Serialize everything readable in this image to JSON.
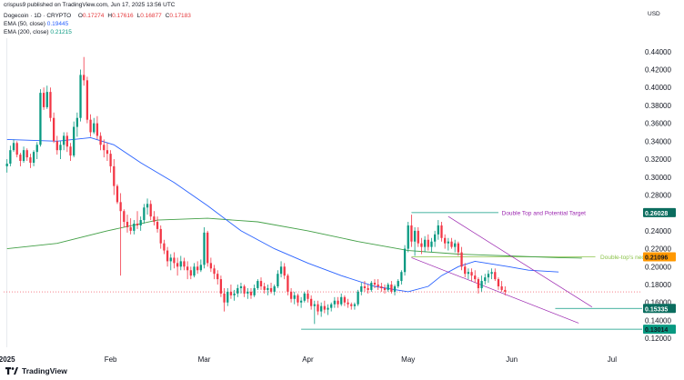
{
  "header": {
    "published_line": "crispus9 published on TradingView.com, Jun 17, 2025 13:56 UTC",
    "symbol": "Dogecoin · 1D · CRYPTO",
    "ohlc": [
      {
        "k": "O",
        "v": "0.17274"
      },
      {
        "k": "H",
        "v": "0.17616"
      },
      {
        "k": "L",
        "v": "0.16877"
      },
      {
        "k": "C",
        "v": "0.17183"
      }
    ],
    "ema50_label": "EMA (50, close)",
    "ema50_value": "0.19445",
    "ema200_label": "EMA (200, close)",
    "ema200_value": "0.21215"
  },
  "currency": "USD",
  "footer": {
    "brand": "TradingView"
  },
  "colors": {
    "up": "#089981",
    "down": "#f23645",
    "ema50": "#2962ff",
    "ema200": "#43a047",
    "hline": "#089981",
    "current": "#f23645",
    "channel": "#9c27b0",
    "neckline_badge": "#ff9800",
    "target_badge": "#0b6d5f",
    "year_line": "#131722"
  },
  "chart_data": {
    "type": "candlestick",
    "title": "",
    "xlabel": "",
    "ylabel": "",
    "ylim": [
      0.11,
      0.455
    ],
    "y_ticks": [
      "0.44000",
      "0.42000",
      "0.40000",
      "0.38000",
      "0.36000",
      "0.34000",
      "0.32000",
      "0.30000",
      "0.28000",
      "0.26000",
      "0.24000",
      "0.22000",
      "0.20000",
      "0.18000",
      "0.16000",
      "0.14000",
      "0.12000"
    ],
    "x_ticks": [
      {
        "label": "2025",
        "day": 0,
        "bold": true
      },
      {
        "label": "Feb",
        "day": 31
      },
      {
        "label": "Mar",
        "day": 59
      },
      {
        "label": "Apr",
        "day": 90
      },
      {
        "label": "May",
        "day": 120
      },
      {
        "label": "Jun",
        "day": 151
      },
      {
        "label": "Jul",
        "day": 181
      }
    ],
    "x_range_days": [
      -1,
      190
    ],
    "candles": [
      [
        0.312,
        0.32,
        0.305,
        0.315
      ],
      [
        0.315,
        0.335,
        0.312,
        0.33
      ],
      [
        0.33,
        0.342,
        0.328,
        0.338
      ],
      [
        0.338,
        0.34,
        0.322,
        0.325
      ],
      [
        0.325,
        0.327,
        0.312,
        0.318
      ],
      [
        0.318,
        0.334,
        0.316,
        0.33
      ],
      [
        0.33,
        0.332,
        0.318,
        0.322
      ],
      [
        0.322,
        0.326,
        0.31,
        0.316
      ],
      [
        0.316,
        0.33,
        0.312,
        0.328
      ],
      [
        0.328,
        0.339,
        0.32,
        0.336
      ],
      [
        0.336,
        0.398,
        0.334,
        0.394
      ],
      [
        0.394,
        0.4,
        0.375,
        0.378
      ],
      [
        0.378,
        0.402,
        0.376,
        0.395
      ],
      [
        0.395,
        0.4,
        0.362,
        0.366
      ],
      [
        0.366,
        0.372,
        0.338,
        0.34
      ],
      [
        0.34,
        0.346,
        0.325,
        0.33
      ],
      [
        0.33,
        0.34,
        0.32,
        0.336
      ],
      [
        0.336,
        0.35,
        0.33,
        0.346
      ],
      [
        0.346,
        0.35,
        0.328,
        0.334
      ],
      [
        0.334,
        0.338,
        0.318,
        0.324
      ],
      [
        0.324,
        0.362,
        0.322,
        0.356
      ],
      [
        0.356,
        0.372,
        0.345,
        0.366
      ],
      [
        0.366,
        0.42,
        0.362,
        0.414
      ],
      [
        0.414,
        0.434,
        0.402,
        0.408
      ],
      [
        0.408,
        0.412,
        0.36,
        0.364
      ],
      [
        0.364,
        0.37,
        0.345,
        0.35
      ],
      [
        0.35,
        0.366,
        0.348,
        0.36
      ],
      [
        0.36,
        0.368,
        0.342,
        0.346
      ],
      [
        0.346,
        0.35,
        0.33,
        0.336
      ],
      [
        0.336,
        0.342,
        0.322,
        0.33
      ],
      [
        0.33,
        0.338,
        0.318,
        0.326
      ],
      [
        0.326,
        0.33,
        0.305,
        0.312
      ],
      [
        0.312,
        0.32,
        0.28,
        0.29
      ],
      [
        0.29,
        0.292,
        0.27,
        0.272
      ],
      [
        0.272,
        0.282,
        0.19,
        0.262
      ],
      [
        0.262,
        0.264,
        0.244,
        0.25
      ],
      [
        0.25,
        0.258,
        0.238,
        0.244
      ],
      [
        0.244,
        0.254,
        0.236,
        0.24
      ],
      [
        0.24,
        0.252,
        0.236,
        0.248
      ],
      [
        0.248,
        0.262,
        0.242,
        0.246
      ],
      [
        0.246,
        0.256,
        0.24,
        0.252
      ],
      [
        0.252,
        0.27,
        0.248,
        0.266
      ],
      [
        0.266,
        0.276,
        0.258,
        0.27
      ],
      [
        0.27,
        0.274,
        0.252,
        0.256
      ],
      [
        0.256,
        0.262,
        0.246,
        0.25
      ],
      [
        0.25,
        0.256,
        0.238,
        0.242
      ],
      [
        0.242,
        0.246,
        0.22,
        0.226
      ],
      [
        0.226,
        0.23,
        0.214,
        0.218
      ],
      [
        0.218,
        0.222,
        0.2,
        0.206
      ],
      [
        0.206,
        0.214,
        0.196,
        0.21
      ],
      [
        0.21,
        0.216,
        0.198,
        0.204
      ],
      [
        0.204,
        0.21,
        0.19,
        0.2
      ],
      [
        0.2,
        0.212,
        0.196,
        0.206
      ],
      [
        0.206,
        0.21,
        0.196,
        0.2
      ],
      [
        0.2,
        0.206,
        0.186,
        0.196
      ],
      [
        0.196,
        0.2,
        0.186,
        0.19
      ],
      [
        0.19,
        0.204,
        0.188,
        0.2
      ],
      [
        0.2,
        0.206,
        0.192,
        0.196
      ],
      [
        0.196,
        0.208,
        0.194,
        0.202
      ],
      [
        0.202,
        0.244,
        0.198,
        0.238
      ],
      [
        0.238,
        0.24,
        0.2,
        0.204
      ],
      [
        0.204,
        0.21,
        0.194,
        0.198
      ],
      [
        0.198,
        0.202,
        0.186,
        0.192
      ],
      [
        0.192,
        0.196,
        0.18,
        0.186
      ],
      [
        0.186,
        0.19,
        0.166,
        0.17
      ],
      [
        0.17,
        0.176,
        0.15,
        0.16
      ],
      [
        0.16,
        0.176,
        0.156,
        0.172
      ],
      [
        0.172,
        0.18,
        0.164,
        0.168
      ],
      [
        0.168,
        0.174,
        0.162,
        0.17
      ],
      [
        0.17,
        0.18,
        0.166,
        0.176
      ],
      [
        0.176,
        0.182,
        0.17,
        0.178
      ],
      [
        0.178,
        0.18,
        0.166,
        0.17
      ],
      [
        0.17,
        0.176,
        0.164,
        0.172
      ],
      [
        0.172,
        0.176,
        0.164,
        0.168
      ],
      [
        0.168,
        0.18,
        0.166,
        0.176
      ],
      [
        0.176,
        0.186,
        0.174,
        0.184
      ],
      [
        0.184,
        0.188,
        0.174,
        0.178
      ],
      [
        0.178,
        0.182,
        0.17,
        0.174
      ],
      [
        0.174,
        0.18,
        0.168,
        0.176
      ],
      [
        0.176,
        0.182,
        0.17,
        0.172
      ],
      [
        0.172,
        0.18,
        0.168,
        0.178
      ],
      [
        0.178,
        0.196,
        0.176,
        0.192
      ],
      [
        0.192,
        0.206,
        0.188,
        0.2
      ],
      [
        0.2,
        0.204,
        0.186,
        0.19
      ],
      [
        0.19,
        0.192,
        0.168,
        0.172
      ],
      [
        0.172,
        0.176,
        0.16,
        0.164
      ],
      [
        0.164,
        0.172,
        0.158,
        0.168
      ],
      [
        0.168,
        0.17,
        0.156,
        0.16
      ],
      [
        0.16,
        0.166,
        0.154,
        0.162
      ],
      [
        0.162,
        0.172,
        0.16,
        0.17
      ],
      [
        0.17,
        0.174,
        0.16,
        0.164
      ],
      [
        0.164,
        0.168,
        0.152,
        0.156
      ],
      [
        0.156,
        0.162,
        0.136,
        0.158
      ],
      [
        0.158,
        0.162,
        0.146,
        0.15
      ],
      [
        0.15,
        0.16,
        0.144,
        0.156
      ],
      [
        0.156,
        0.162,
        0.148,
        0.152
      ],
      [
        0.152,
        0.158,
        0.146,
        0.154
      ],
      [
        0.154,
        0.16,
        0.15,
        0.158
      ],
      [
        0.158,
        0.166,
        0.154,
        0.162
      ],
      [
        0.162,
        0.166,
        0.154,
        0.158
      ],
      [
        0.158,
        0.17,
        0.156,
        0.166
      ],
      [
        0.166,
        0.168,
        0.156,
        0.16
      ],
      [
        0.16,
        0.164,
        0.154,
        0.158
      ],
      [
        0.158,
        0.16,
        0.152,
        0.156
      ],
      [
        0.156,
        0.16,
        0.152,
        0.158
      ],
      [
        0.158,
        0.174,
        0.156,
        0.172
      ],
      [
        0.172,
        0.182,
        0.168,
        0.178
      ],
      [
        0.178,
        0.184,
        0.172,
        0.176
      ],
      [
        0.176,
        0.18,
        0.17,
        0.174
      ],
      [
        0.174,
        0.184,
        0.172,
        0.182
      ],
      [
        0.182,
        0.186,
        0.176,
        0.18
      ],
      [
        0.18,
        0.186,
        0.174,
        0.178
      ],
      [
        0.178,
        0.182,
        0.172,
        0.176
      ],
      [
        0.176,
        0.18,
        0.17,
        0.174
      ],
      [
        0.174,
        0.182,
        0.172,
        0.18
      ],
      [
        0.18,
        0.184,
        0.17,
        0.172
      ],
      [
        0.172,
        0.18,
        0.168,
        0.178
      ],
      [
        0.178,
        0.186,
        0.176,
        0.184
      ],
      [
        0.184,
        0.196,
        0.18,
        0.194
      ],
      [
        0.194,
        0.224,
        0.19,
        0.22
      ],
      [
        0.22,
        0.25,
        0.216,
        0.246
      ],
      [
        0.246,
        0.258,
        0.222,
        0.228
      ],
      [
        0.228,
        0.244,
        0.212,
        0.24
      ],
      [
        0.24,
        0.244,
        0.222,
        0.226
      ],
      [
        0.226,
        0.232,
        0.214,
        0.222
      ],
      [
        0.222,
        0.234,
        0.216,
        0.23
      ],
      [
        0.23,
        0.236,
        0.218,
        0.222
      ],
      [
        0.222,
        0.232,
        0.216,
        0.228
      ],
      [
        0.228,
        0.24,
        0.222,
        0.236
      ],
      [
        0.236,
        0.252,
        0.23,
        0.246
      ],
      [
        0.246,
        0.25,
        0.228,
        0.232
      ],
      [
        0.232,
        0.236,
        0.22,
        0.226
      ],
      [
        0.226,
        0.232,
        0.218,
        0.228
      ],
      [
        0.228,
        0.232,
        0.22,
        0.222
      ],
      [
        0.222,
        0.23,
        0.216,
        0.226
      ],
      [
        0.226,
        0.228,
        0.212,
        0.216
      ],
      [
        0.216,
        0.222,
        0.196,
        0.2
      ],
      [
        0.2,
        0.204,
        0.188,
        0.192
      ],
      [
        0.192,
        0.198,
        0.186,
        0.194
      ],
      [
        0.194,
        0.198,
        0.184,
        0.19
      ],
      [
        0.19,
        0.196,
        0.182,
        0.186
      ],
      [
        0.186,
        0.188,
        0.17,
        0.176
      ],
      [
        0.176,
        0.19,
        0.172,
        0.184
      ],
      [
        0.184,
        0.192,
        0.18,
        0.188
      ],
      [
        0.188,
        0.196,
        0.182,
        0.192
      ],
      [
        0.192,
        0.198,
        0.186,
        0.194
      ],
      [
        0.194,
        0.198,
        0.184,
        0.186
      ],
      [
        0.186,
        0.188,
        0.174,
        0.178
      ],
      [
        0.178,
        0.184,
        0.172,
        0.174
      ],
      [
        0.174,
        0.178,
        0.168,
        0.172
      ]
    ],
    "ema50": [
      [
        0,
        0.342
      ],
      [
        15,
        0.34
      ],
      [
        25,
        0.344
      ],
      [
        32,
        0.336
      ],
      [
        40,
        0.316
      ],
      [
        50,
        0.294
      ],
      [
        60,
        0.268
      ],
      [
        70,
        0.24
      ],
      [
        80,
        0.22
      ],
      [
        90,
        0.204
      ],
      [
        100,
        0.19
      ],
      [
        110,
        0.178
      ],
      [
        120,
        0.172
      ],
      [
        126,
        0.178
      ],
      [
        130,
        0.19
      ],
      [
        135,
        0.2
      ],
      [
        140,
        0.206
      ],
      [
        150,
        0.2
      ],
      [
        156,
        0.196
      ],
      [
        165,
        0.194
      ]
    ],
    "ema200": [
      [
        0,
        0.22
      ],
      [
        15,
        0.226
      ],
      [
        30,
        0.24
      ],
      [
        45,
        0.252
      ],
      [
        60,
        0.254
      ],
      [
        75,
        0.25
      ],
      [
        90,
        0.24
      ],
      [
        105,
        0.228
      ],
      [
        120,
        0.218
      ],
      [
        135,
        0.214
      ],
      [
        150,
        0.212
      ],
      [
        165,
        0.21
      ],
      [
        172,
        0.2095
      ]
    ],
    "support_line": {
      "value": 0.13014,
      "from_day": 88,
      "label": "0.13014"
    },
    "level_153": {
      "value": 0.15335,
      "from_day": 164,
      "label": "0.15335"
    },
    "current_price": {
      "value": 0.17183
    },
    "target_line": {
      "value": 0.26028,
      "from_day": 121,
      "text": "Double Top and Potential Target",
      "label": "0.26028"
    },
    "neckline": {
      "value": 0.21096,
      "from_day": 121,
      "text": "Double-top's neckline",
      "label": "0.21096"
    },
    "channel_upper": [
      [
        132,
        0.256
      ],
      [
        175,
        0.155
      ]
    ],
    "channel_lower": [
      [
        121,
        0.21
      ],
      [
        171,
        0.137
      ]
    ]
  }
}
